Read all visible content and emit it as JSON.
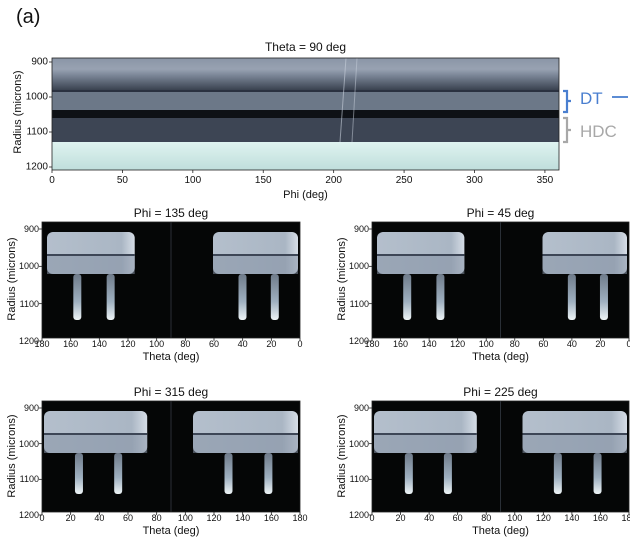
{
  "panel_label": "(a)",
  "colors": {
    "dt": "#4a7fd0",
    "hdc": "#a8a8a8",
    "plot_bg": "#050606",
    "shell_light": "#9aa8b8",
    "ice_cyan": "#c8e4e2"
  },
  "top_plot": {
    "title": "Theta = 90 deg",
    "xlabel": "Phi (deg)",
    "ylabel": "Radius (microns)",
    "xticks": [
      "0",
      "50",
      "100",
      "150",
      "200",
      "250",
      "300",
      "350"
    ],
    "yticks": [
      "900",
      "1000",
      "1100",
      "1200"
    ],
    "annotations": {
      "dt": "DT",
      "hdc": "HDC"
    }
  },
  "small_plots": [
    {
      "title": "Phi = 135 deg",
      "xlabel": "Theta (deg)",
      "ylabel": "Radius (microns)",
      "xticks": [
        "180",
        "160",
        "140",
        "120",
        "100",
        "80",
        "60",
        "40",
        "20",
        "0"
      ],
      "yticks": [
        "900",
        "1000",
        "1100",
        "1200"
      ]
    },
    {
      "title": "Phi = 45 deg",
      "xlabel": "Theta (deg)",
      "ylabel": "Radius (microns)",
      "xticks": [
        "180",
        "160",
        "140",
        "120",
        "100",
        "80",
        "60",
        "40",
        "20",
        "0"
      ],
      "yticks": [
        "900",
        "1000",
        "1100",
        "1200"
      ]
    },
    {
      "title": "Phi = 315 deg",
      "xlabel": "Theta (deg)",
      "ylabel": "Radius (microns)",
      "xticks": [
        "0",
        "20",
        "40",
        "60",
        "80",
        "100",
        "120",
        "140",
        "160",
        "180"
      ],
      "yticks": [
        "900",
        "1000",
        "1100",
        "1200"
      ]
    },
    {
      "title": "Phi = 225 deg",
      "xlabel": "Theta (deg)",
      "ylabel": "Radius (microns)",
      "xticks": [
        "0",
        "20",
        "40",
        "60",
        "80",
        "100",
        "120",
        "140",
        "160",
        "180"
      ],
      "yticks": [
        "900",
        "1000",
        "1100",
        "1200"
      ]
    }
  ]
}
